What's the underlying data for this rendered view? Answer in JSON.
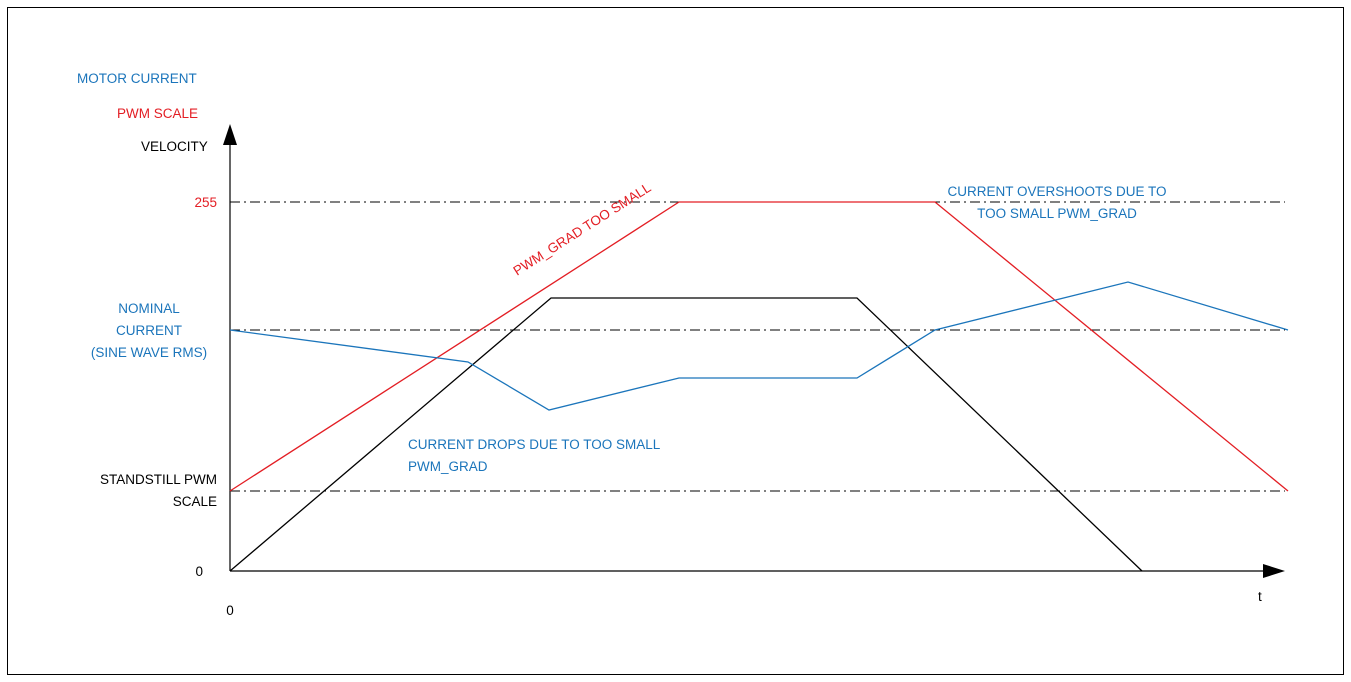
{
  "colors": {
    "velocity": "#000000",
    "pwm_scale": "#e31e24",
    "motor_current": "#1b75bb",
    "reference_lines": "#000000"
  },
  "legend": {
    "motor_current": "MOTOR CURRENT",
    "pwm_scale": "PWM SCALE",
    "velocity": "VELOCITY"
  },
  "y_axis_labels": {
    "pwm_max": "255",
    "nominal_current": [
      "NOMINAL",
      "CURRENT",
      "(SINE WAVE RMS)"
    ],
    "standstill_pwm": [
      "STANDSTILL PWM",
      "SCALE"
    ],
    "zero": "0"
  },
  "x_axis": {
    "origin_label": "0",
    "axis_label": "t"
  },
  "annotations": {
    "pwm_grad_too_small": "PWM_GRAD TOO SMALL",
    "current_drops": [
      "CURRENT DROPS DUE TO TOO SMALL",
      "PWM_GRAD"
    ],
    "current_overshoots": [
      "CURRENT OVERSHOOTS DUE TO",
      "TOO SMALL PWM_GRAD"
    ]
  }
}
